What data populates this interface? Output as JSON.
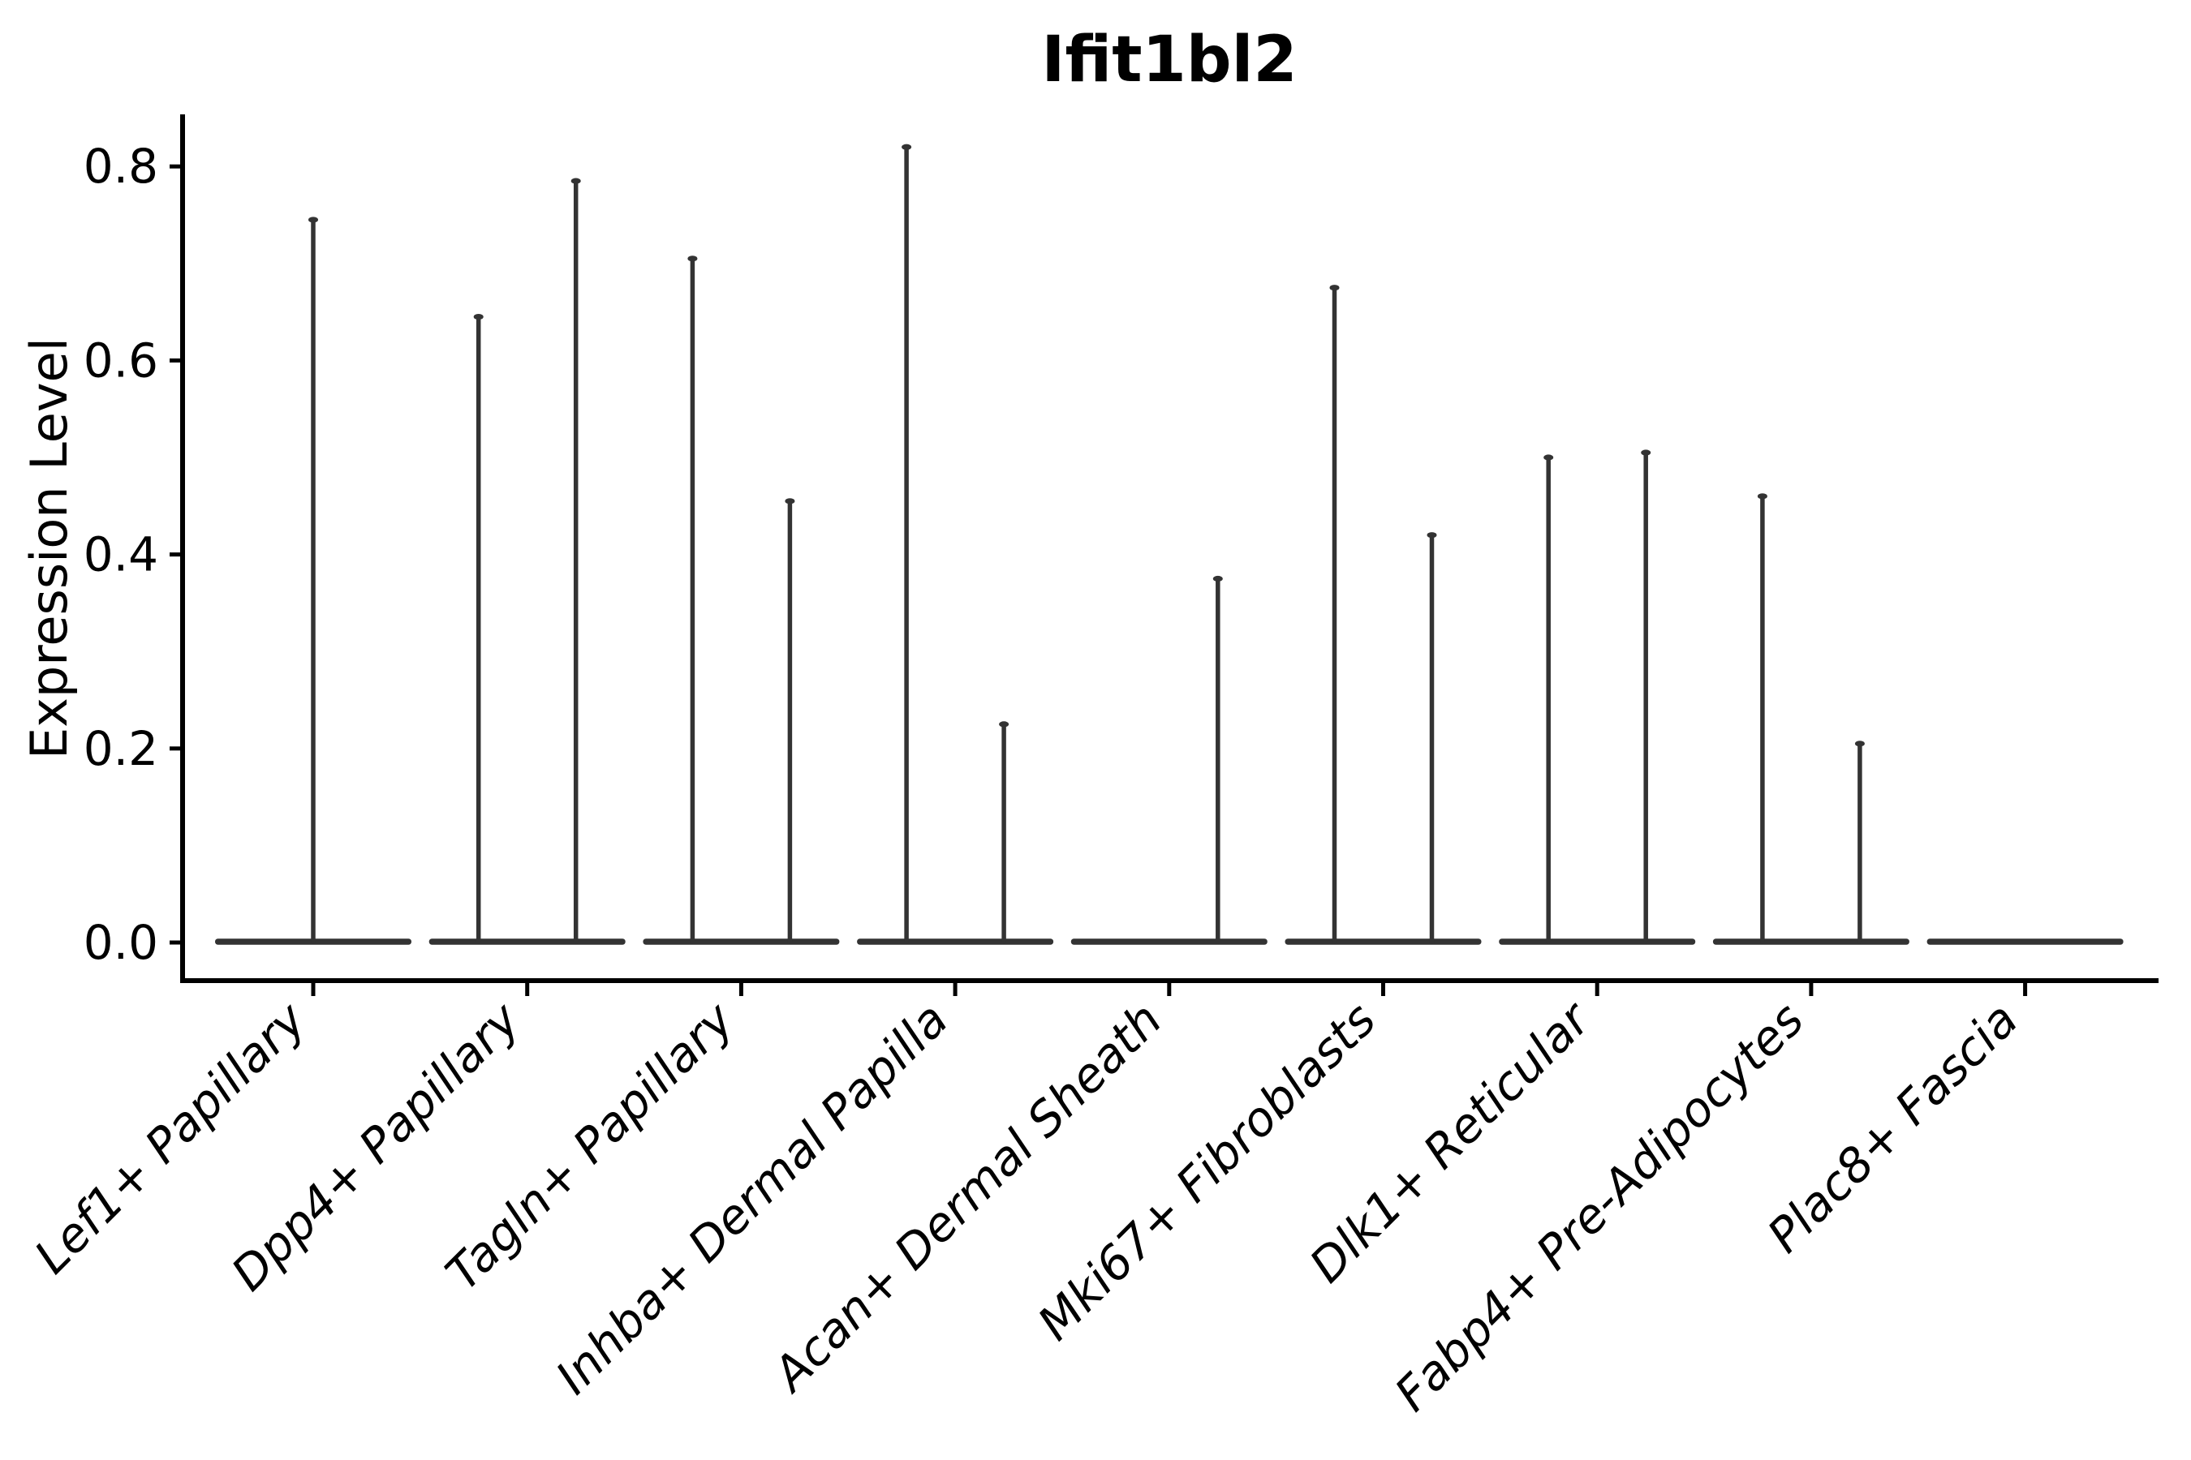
{
  "figure": {
    "background_color": "#ffffff",
    "axis_color": "#000000",
    "violin_color": "#333333"
  },
  "chart_data": {
    "type": "violin",
    "title": "Ifit1bl2",
    "xlabel": "",
    "ylabel": "Expression Level",
    "ylim": [
      -0.04,
      0.86
    ],
    "grid": false,
    "legend": false,
    "ytick_values": [
      0.0,
      0.2,
      0.4,
      0.6,
      0.8
    ],
    "ytick_labels": [
      "0.0",
      "0.2",
      "0.4",
      "0.6",
      "0.8"
    ],
    "categories": [
      "Lef1+ Papillary",
      "Dpp4+ Papillary",
      "Tagln+ Papillary",
      "Inhba+ Dermal Papilla",
      "Acan+ Dermal Sheath",
      "Mki67+ Fibroblasts",
      "Dlk1+ Reticular",
      "Fabp4+ Pre-Adipocytes",
      "Plac8+ Fascia"
    ],
    "violins": [
      {
        "label": "Lef1+ Papillary",
        "base_value": 0.0,
        "spikes": [
          {
            "pos": "center",
            "max": 0.745
          }
        ]
      },
      {
        "label": "Dpp4+ Papillary",
        "base_value": 0.0,
        "spikes": [
          {
            "pos": "left",
            "max": 0.645
          },
          {
            "pos": "right",
            "max": 0.785
          }
        ]
      },
      {
        "label": "Tagln+ Papillary",
        "base_value": 0.0,
        "spikes": [
          {
            "pos": "left",
            "max": 0.705
          },
          {
            "pos": "right",
            "max": 0.455
          }
        ]
      },
      {
        "label": "Inhba+ Dermal Papilla",
        "base_value": 0.0,
        "spikes": [
          {
            "pos": "left",
            "max": 0.82
          },
          {
            "pos": "right",
            "max": 0.225
          }
        ]
      },
      {
        "label": "Acan+ Dermal Sheath",
        "base_value": 0.0,
        "spikes": [
          {
            "pos": "right",
            "max": 0.375
          }
        ]
      },
      {
        "label": "Mki67+ Fibroblasts",
        "base_value": 0.0,
        "spikes": [
          {
            "pos": "left",
            "max": 0.675
          },
          {
            "pos": "right",
            "max": 0.42
          }
        ]
      },
      {
        "label": "Dlk1+ Reticular",
        "base_value": 0.0,
        "spikes": [
          {
            "pos": "left",
            "max": 0.5
          },
          {
            "pos": "right",
            "max": 0.505
          }
        ]
      },
      {
        "label": "Fabp4+ Pre-Adipocytes",
        "base_value": 0.0,
        "spikes": [
          {
            "pos": "left",
            "max": 0.46
          },
          {
            "pos": "right",
            "max": 0.205
          }
        ]
      },
      {
        "label": "Plac8+ Fascia",
        "base_value": 0.0,
        "spikes": []
      }
    ]
  }
}
